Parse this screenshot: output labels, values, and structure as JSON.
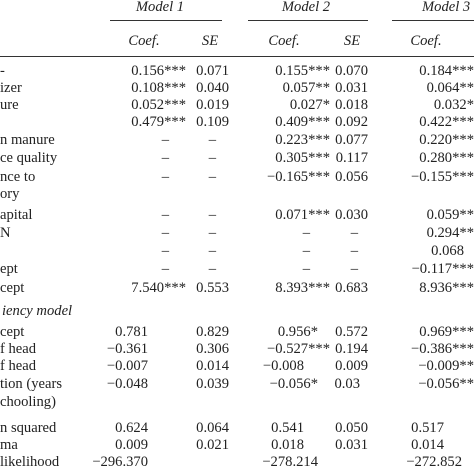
{
  "header": {
    "models": [
      "Model 1",
      "Model 2",
      "Model 3"
    ],
    "coef_label": "Coef.",
    "se_label": "SE"
  },
  "rows": [
    {
      "label": "",
      "m1c": "0.156***",
      "m1s": "0.071",
      "m2c": "0.155***",
      "m2s": "0.070",
      "m3c": "0.184***"
    },
    {
      "label": "izer",
      "m1c": "0.108***",
      "m1s": "0.040",
      "m2c": "0.057**",
      "m2s": "0.031",
      "m3c": "0.064**"
    },
    {
      "label": "ure",
      "m1c": "0.052***",
      "m1s": "0.019",
      "m2c": "0.027*",
      "m2s": "0.018",
      "m3c": "0.032*"
    },
    {
      "label": "",
      "m1c": "0.479***",
      "m1s": "0.109",
      "m2c": "0.409***",
      "m2s": "0.092",
      "m3c": "0.422***"
    },
    {
      "label": "n manure",
      "m1c": "–",
      "m1s": "–",
      "m2c": "0.223***",
      "m2s": "0.077",
      "m3c": "0.220***"
    },
    {
      "label": "ce quality",
      "m1c": "–",
      "m1s": "–",
      "m2c": "0.305***",
      "m2s": "0.117",
      "m3c": "0.280***"
    },
    {
      "label": "nce to",
      "m1c": "–",
      "m1s": "–",
      "m2c": "−0.165***",
      "m2s": "0.056",
      "m3c": "−0.155***"
    },
    {
      "label": "ory",
      "m1c": "",
      "m1s": "",
      "m2c": "",
      "m2s": "",
      "m3c": ""
    },
    {
      "label": "apital",
      "m1c": "–",
      "m1s": "–",
      "m2c": "0.071***",
      "m2s": "0.030",
      "m3c": "0.059**"
    },
    {
      "label": "N",
      "m1c": "–",
      "m1s": "–",
      "m2c": "–",
      "m2s": "–",
      "m3c": "0.294**"
    },
    {
      "label": "",
      "m1c": "–",
      "m1s": "–",
      "m2c": "–",
      "m2s": "–",
      "m3c": "0.068"
    },
    {
      "label": "ept",
      "m1c": "–",
      "m1s": "–",
      "m2c": "–",
      "m2s": "–",
      "m3c": "−0.117***"
    },
    {
      "label": "cept",
      "m1c": "7.540***",
      "m1s": "0.553",
      "m2c": "8.393***",
      "m2s": "0.683",
      "m3c": "8.936***"
    }
  ],
  "section_title": "iency model",
  "rows2": [
    {
      "label": "cept",
      "m1c": "0.781",
      "m1s": "0.829",
      "m2c": "0.956*",
      "m2s": "0.572",
      "m3c": "0.969***"
    },
    {
      "label": "f head",
      "m1c": "−0.361",
      "m1s": "0.306",
      "m2c": "−0.527***",
      "m2s": "0.194",
      "m3c": "−0.386***"
    },
    {
      "label": "f head",
      "m1c": "−0.007",
      "m1s": "0.014",
      "m2c": "−0.008",
      "m2s": "0.009",
      "m3c": "−0.009**"
    },
    {
      "label": "tion (years",
      "m1c": "−0.048",
      "m1s": "0.039",
      "m2c": "−0.056*",
      "m2s": "0.03",
      "m3c": "−0.056**"
    },
    {
      "label": "chooling)",
      "m1c": "",
      "m1s": "",
      "m2c": "",
      "m2s": "",
      "m3c": ""
    },
    {
      "label": "n squared",
      "m1c": "0.624",
      "m1s": "0.064",
      "m2c": "0.541",
      "m2s": "0.050",
      "m3c": "0.517"
    },
    {
      "label": "ma",
      "m1c": "0.009",
      "m1s": "0.021",
      "m2c": "0.018",
      "m2s": "0.031",
      "m3c": "0.014"
    },
    {
      "label": "likelihood",
      "m1c": "−296.370",
      "m1s": "",
      "m2c": "−278.214",
      "m2s": "",
      "m3c": "−272.852"
    }
  ]
}
